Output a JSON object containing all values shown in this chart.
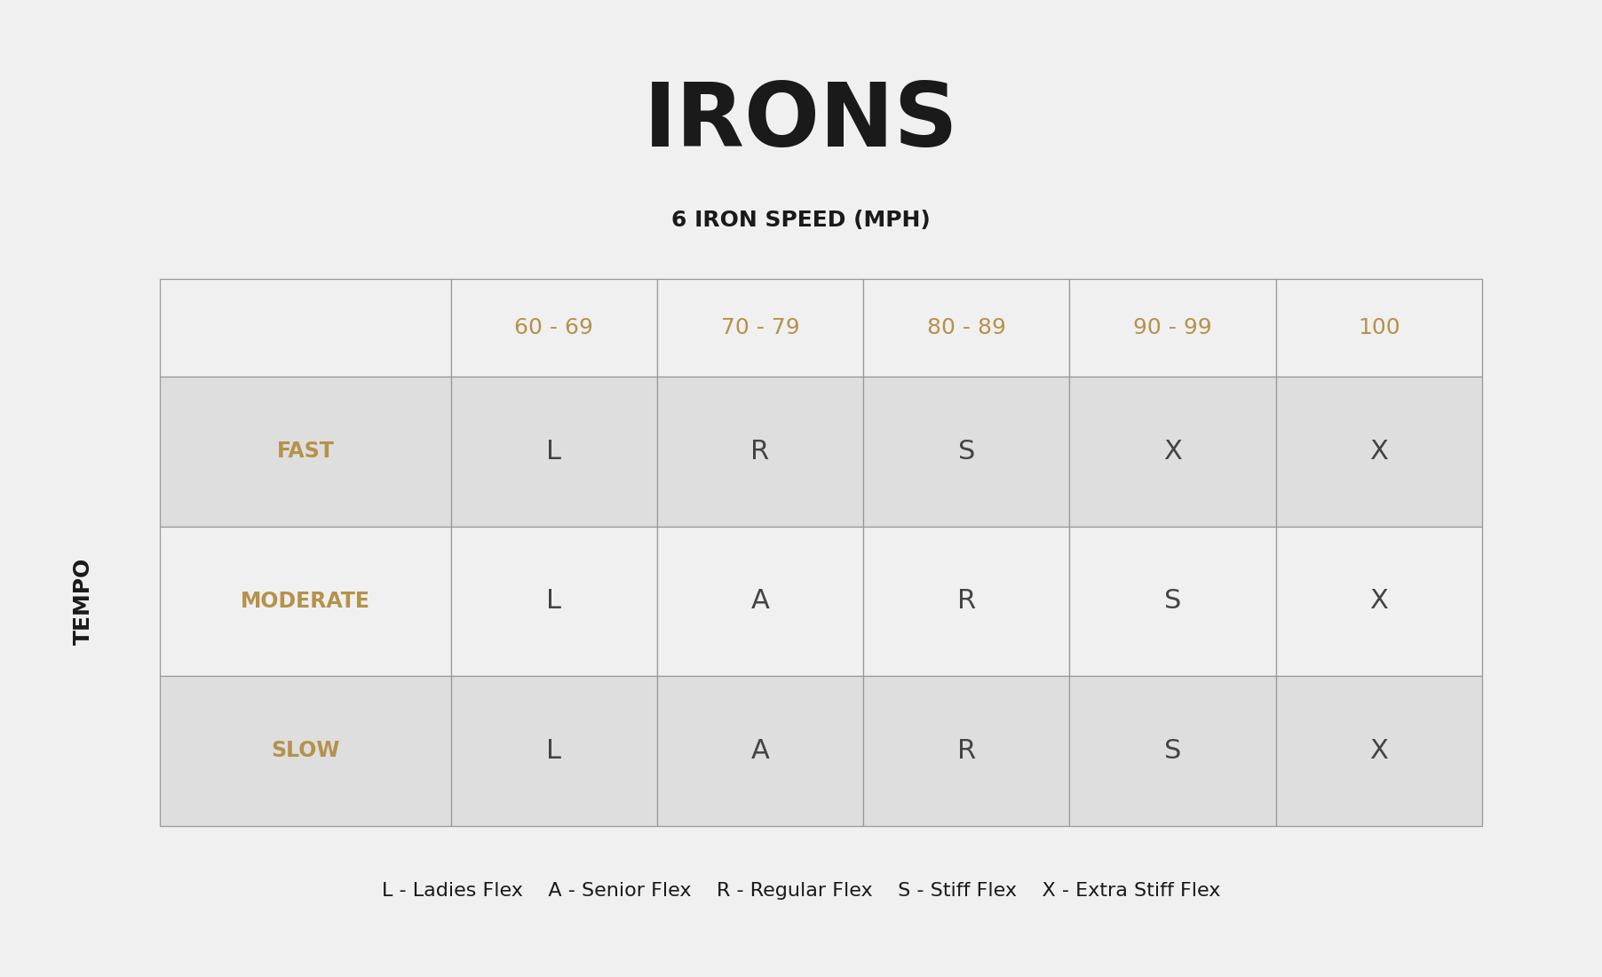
{
  "title": "IRONS",
  "subtitle": "6 IRON SPEED (MPH)",
  "tempo_label": "TEMPO",
  "background_color": "#f0f0f0",
  "col_headers": [
    "",
    "60 - 69",
    "70 - 79",
    "80 - 89",
    "90 - 99",
    "100"
  ],
  "row_labels": [
    "FAST",
    "MODERATE",
    "SLOW"
  ],
  "table_data": [
    [
      "L",
      "R",
      "S",
      "X",
      "X"
    ],
    [
      "L",
      "A",
      "R",
      "S",
      "X"
    ],
    [
      "L",
      "A",
      "R",
      "S",
      "X"
    ]
  ],
  "col_header_color": "#b5924c",
  "row_label_color": "#b5924c",
  "data_text_color": "#444444",
  "shaded_row_color": "#dedede",
  "white_row_color": "#f0f0f0",
  "border_color": "#999999",
  "legend_text": "L - Ladies Flex    A - Senior Flex    R - Regular Flex    S - Stiff Flex    X - Extra Stiff Flex",
  "title_fontsize": 72,
  "subtitle_fontsize": 18,
  "col_header_fontsize": 18,
  "row_label_fontsize": 17,
  "data_fontsize": 22,
  "legend_fontsize": 16,
  "tempo_fontsize": 18
}
